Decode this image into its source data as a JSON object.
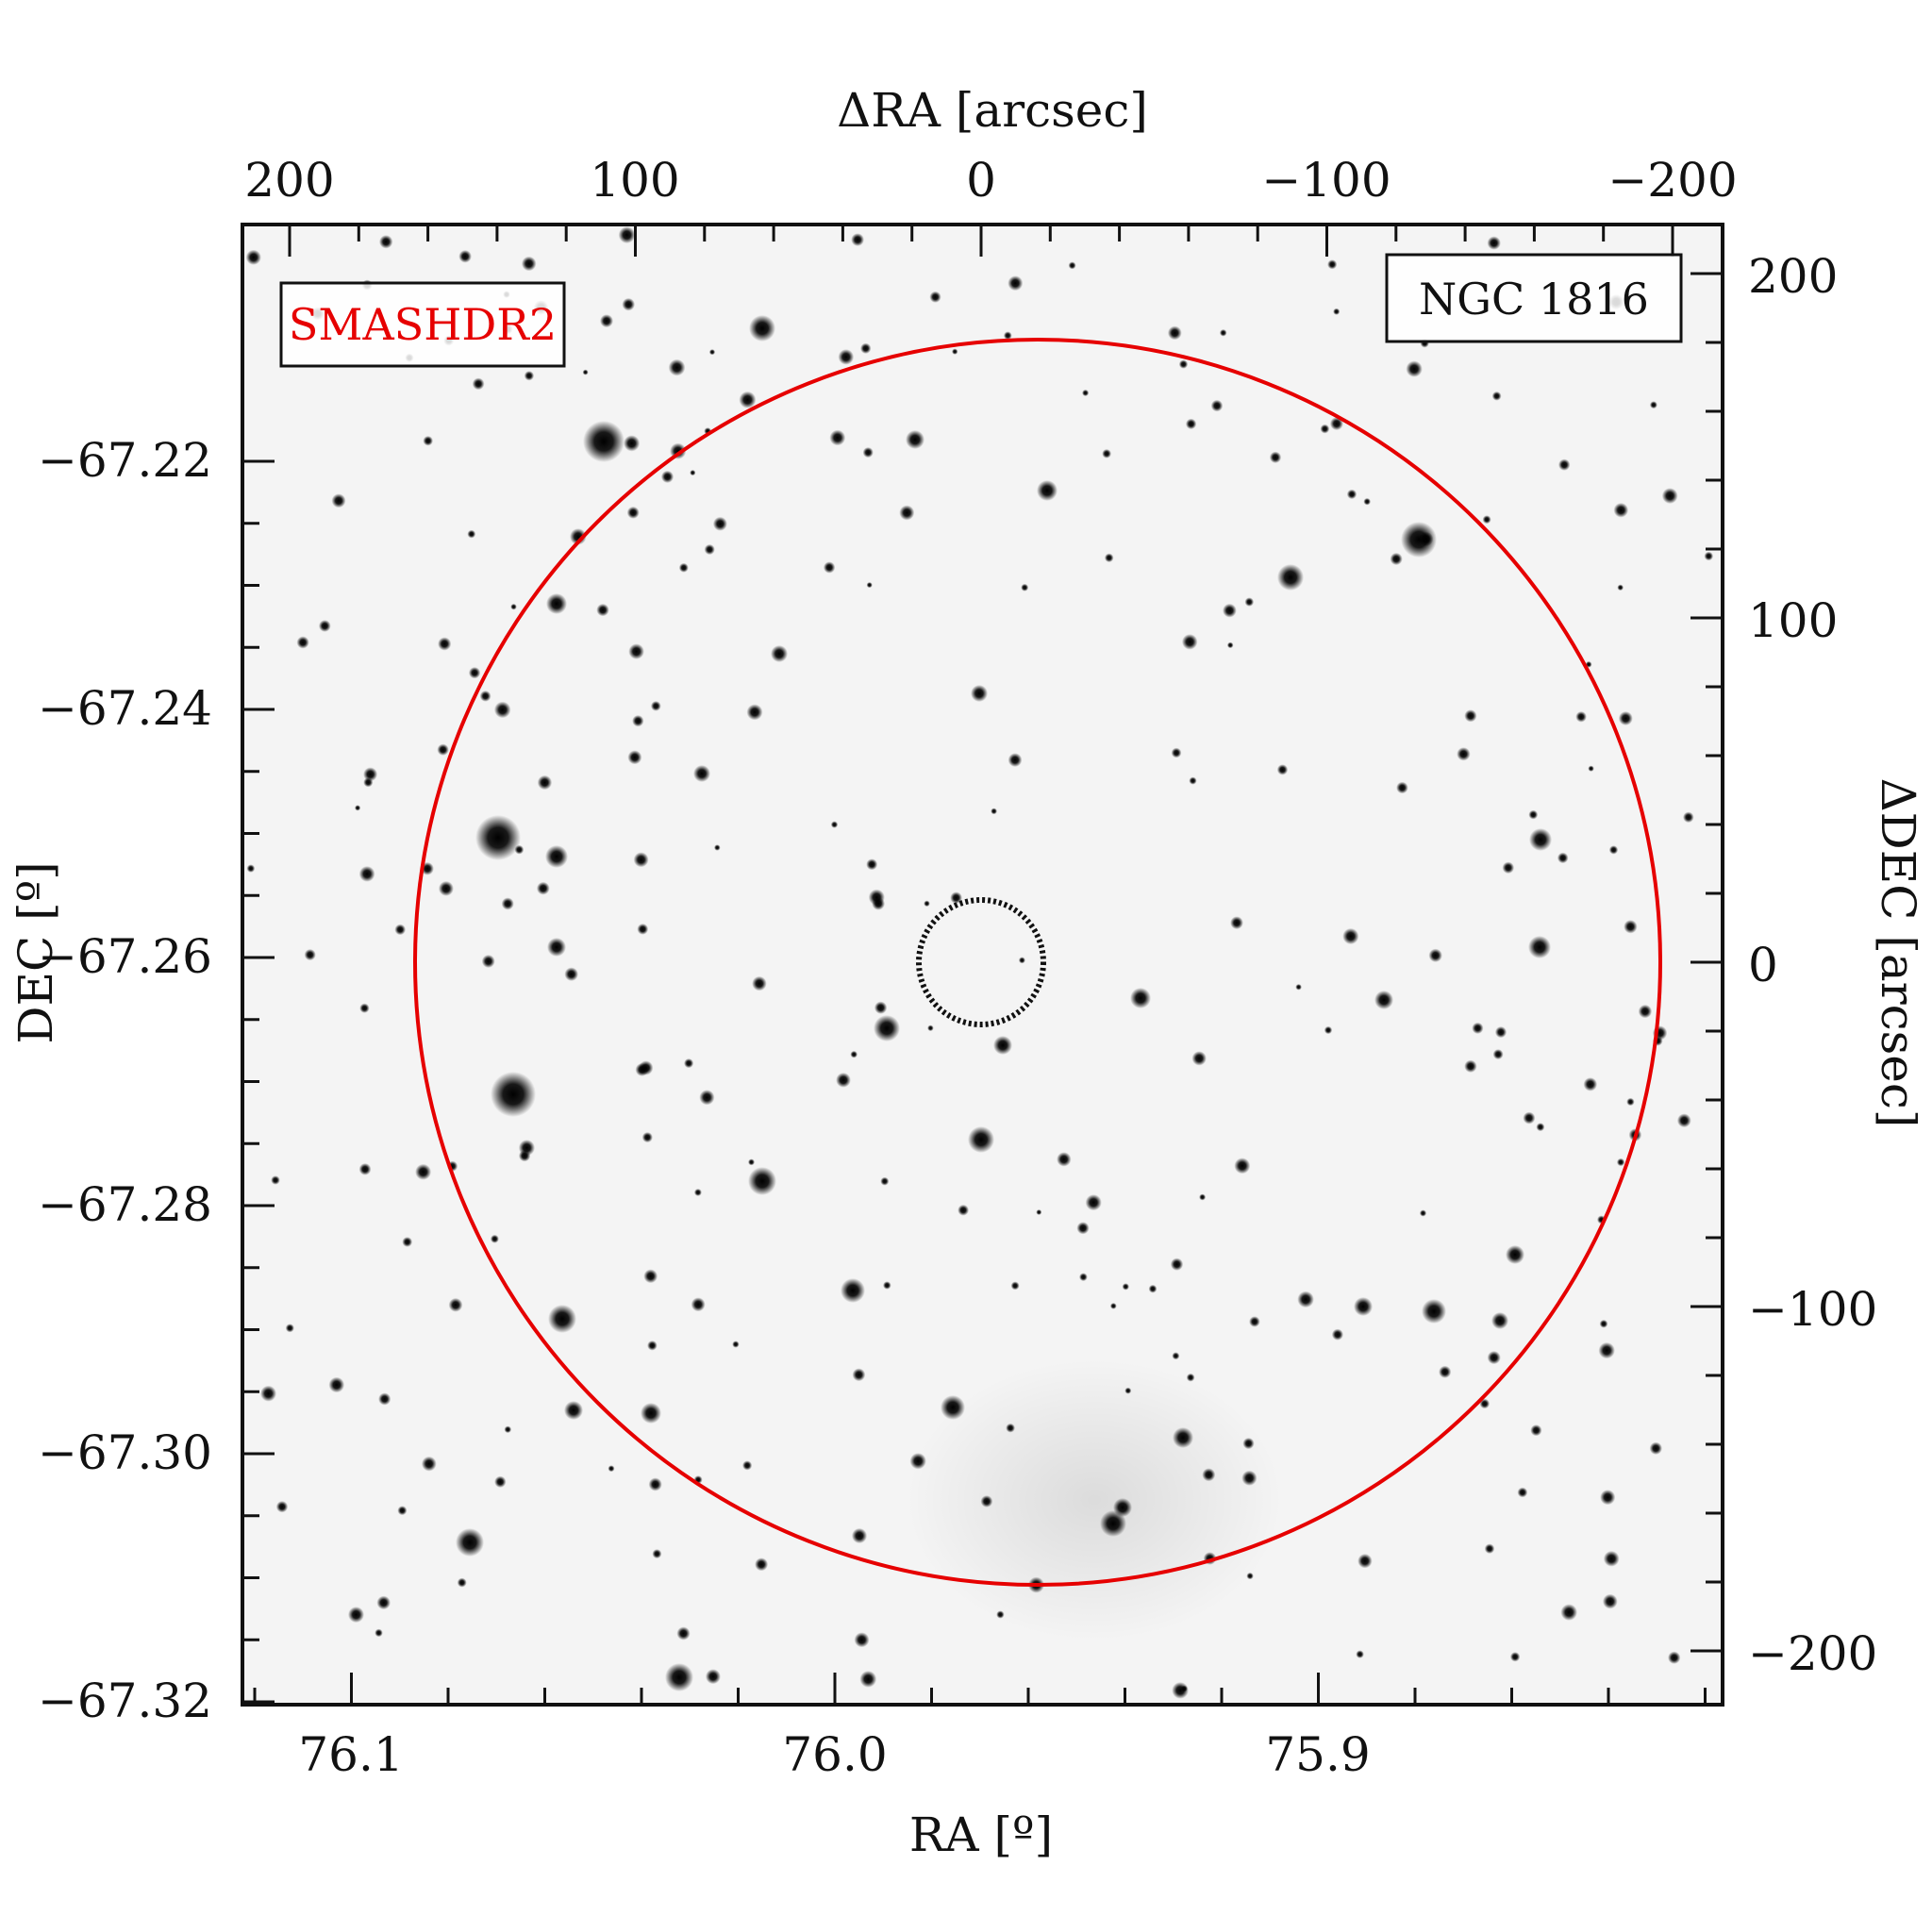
{
  "panel": {
    "survey_label": "SMASHDR2",
    "object_label": "NGC 1816"
  },
  "axes": {
    "bottom_title": "RA [º]",
    "left_title": "DEC [º]",
    "top_title": "ΔRA [arcsec]",
    "right_title": "ΔDEC [arcsec]",
    "bottom_ticks": [
      "76.1",
      "76.0",
      "75.9"
    ],
    "left_ticks": [
      "−67.22",
      "−67.24",
      "−67.26",
      "−67.28",
      "−67.30",
      "−67.32"
    ],
    "top_ticks": [
      "200",
      "100",
      "0",
      "−100",
      "−200"
    ],
    "right_ticks": [
      "200",
      "100",
      "0",
      "−100",
      "−200"
    ]
  },
  "colors": {
    "survey_label": "#e60000",
    "large_circle": "#e60000",
    "small_circle": "#111111",
    "frame": "#111111",
    "sky_background": "#f4f4f4",
    "stars": "#111111"
  },
  "overlays": {
    "large_circle_radius_arcsec": 180,
    "small_circle_radius_arcsec": 18,
    "circle_center_dra_arcsec": 0,
    "circle_center_ddec_arcsec": 0
  }
}
